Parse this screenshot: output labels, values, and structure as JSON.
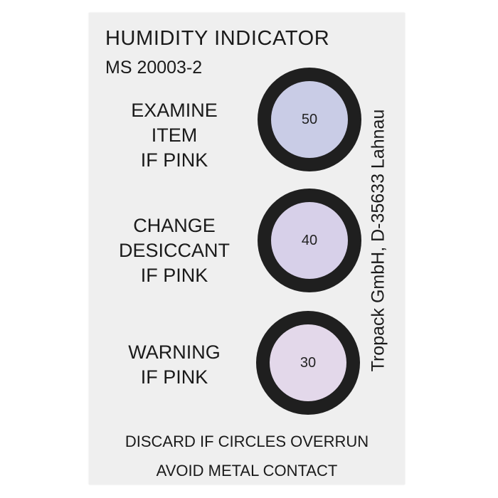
{
  "card": {
    "title": "HUMIDITY INDICATOR",
    "spec": "MS 20003-2",
    "indicators": [
      {
        "lines": [
          "EXAMINE",
          "ITEM",
          "IF PINK"
        ],
        "value": "50",
        "color": "#c9cce6"
      },
      {
        "lines": [
          "CHANGE",
          "DESICCANT",
          "IF PINK"
        ],
        "value": "40",
        "color": "#d7d0e9"
      },
      {
        "lines": [
          "WARNING",
          "IF PINK"
        ],
        "value": "30",
        "color": "#e3d8ea"
      }
    ],
    "manufacturer": "Tropack GmbH, D-35633 Lahnau",
    "footer": [
      "DISCARD IF CIRCLES OVERRUN",
      "AVOID METAL CONTACT"
    ]
  }
}
